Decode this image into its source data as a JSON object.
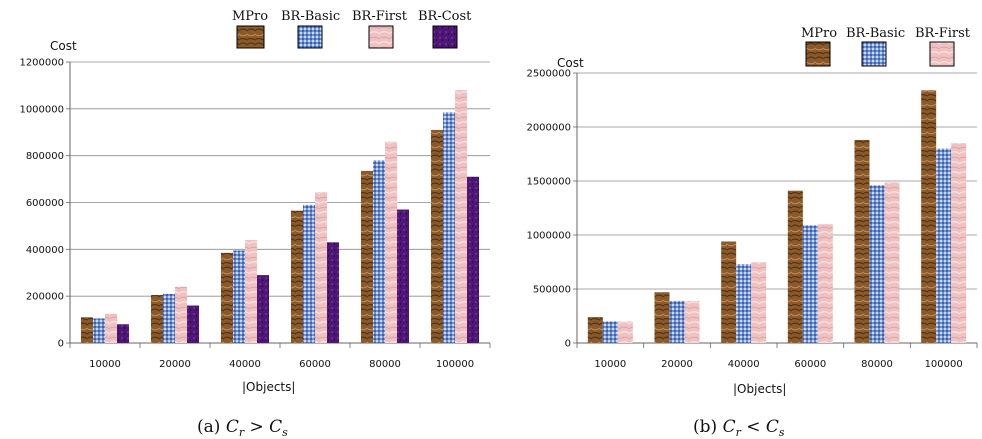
{
  "colors": {
    "MPro": "#8a5a2b",
    "BR-Basic": "#6f93d6",
    "BR-First": "#efc1c1",
    "BR-Cost": "#4e1776"
  },
  "chart_data": [
    {
      "type": "bar",
      "ylabel": "Cost",
      "xlabel": "|Objects|",
      "caption": "(a) C_r > C_s",
      "categories": [
        "10000",
        "20000",
        "40000",
        "60000",
        "80000",
        "100000"
      ],
      "ylim": [
        0,
        1200000
      ],
      "yticks": [
        0,
        200000,
        400000,
        600000,
        800000,
        1000000,
        1200000
      ],
      "grid": "horizontal",
      "legend_position": "top",
      "series": [
        {
          "name": "MPro",
          "values": [
            110000,
            205000,
            385000,
            565000,
            735000,
            910000
          ]
        },
        {
          "name": "BR-Basic",
          "values": [
            105000,
            210000,
            395000,
            590000,
            780000,
            985000
          ]
        },
        {
          "name": "BR-First",
          "values": [
            125000,
            240000,
            440000,
            645000,
            860000,
            1080000
          ]
        },
        {
          "name": "BR-Cost",
          "values": [
            80000,
            160000,
            290000,
            430000,
            570000,
            710000
          ]
        }
      ]
    },
    {
      "type": "bar",
      "ylabel": "Cost",
      "xlabel": "|Objects|",
      "caption": "(b) C_r < C_s",
      "categories": [
        "10000",
        "20000",
        "40000",
        "60000",
        "80000",
        "100000"
      ],
      "ylim": [
        0,
        2500000
      ],
      "yticks": [
        0,
        500000,
        1000000,
        1500000,
        2000000,
        2500000
      ],
      "grid": "horizontal",
      "legend_position": "top",
      "series": [
        {
          "name": "MPro",
          "values": [
            240000,
            470000,
            940000,
            1410000,
            1880000,
            2340000
          ]
        },
        {
          "name": "BR-Basic",
          "values": [
            200000,
            390000,
            730000,
            1090000,
            1460000,
            1800000
          ]
        },
        {
          "name": "BR-First",
          "values": [
            200000,
            390000,
            750000,
            1100000,
            1490000,
            1850000
          ]
        }
      ]
    }
  ]
}
